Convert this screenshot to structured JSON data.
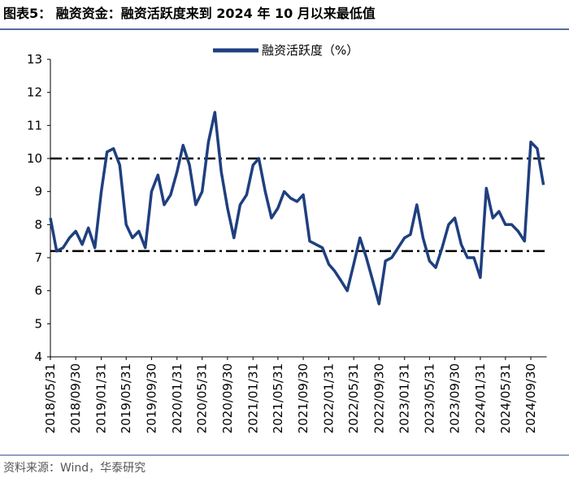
{
  "title": "图表5：  融资资金：融资活跃度来到 2024 年 10 月以来最低值",
  "source": "资料来源：Wind，华泰研究",
  "chart_data": {
    "type": "line",
    "x": [
      "2018/05/31",
      "2018/06/30",
      "2018/07/31",
      "2018/08/31",
      "2018/09/30",
      "2018/10/31",
      "2018/11/30",
      "2018/12/31",
      "2019/01/31",
      "2019/02/28",
      "2019/03/31",
      "2019/04/30",
      "2019/05/31",
      "2019/06/30",
      "2019/07/31",
      "2019/08/31",
      "2019/09/30",
      "2019/10/31",
      "2019/11/30",
      "2019/12/31",
      "2020/01/31",
      "2020/02/29",
      "2020/03/31",
      "2020/04/30",
      "2020/05/31",
      "2020/06/30",
      "2020/07/31",
      "2020/08/31",
      "2020/09/30",
      "2020/10/31",
      "2020/11/30",
      "2020/12/31",
      "2021/01/31",
      "2021/02/28",
      "2021/03/31",
      "2021/04/30",
      "2021/05/31",
      "2021/06/30",
      "2021/07/31",
      "2021/08/31",
      "2021/09/30",
      "2021/10/31",
      "2021/11/30",
      "2021/12/31",
      "2022/01/31",
      "2022/02/28",
      "2022/03/31",
      "2022/04/30",
      "2022/05/31",
      "2022/06/30",
      "2022/07/31",
      "2022/08/31",
      "2022/09/30",
      "2022/10/31",
      "2022/11/30",
      "2022/12/31",
      "2023/01/31",
      "2023/02/28",
      "2023/03/31",
      "2023/04/30",
      "2023/05/31",
      "2023/06/30",
      "2023/07/31",
      "2023/08/31",
      "2023/09/30",
      "2023/10/31",
      "2023/11/30",
      "2023/12/31",
      "2024/01/31",
      "2024/02/29",
      "2024/03/31",
      "2024/04/30",
      "2024/05/31",
      "2024/06/30",
      "2024/07/31",
      "2024/08/31",
      "2024/09/30",
      "2024/10/31",
      "2024/11/30"
    ],
    "series": [
      {
        "name": "融资活跃度（%）",
        "color": "#1f3f7f",
        "values": [
          8.2,
          7.2,
          7.3,
          7.6,
          7.8,
          7.4,
          7.9,
          7.3,
          9.0,
          10.2,
          10.3,
          9.8,
          8.0,
          7.6,
          7.8,
          7.3,
          9.0,
          9.5,
          8.6,
          8.9,
          9.6,
          10.4,
          9.8,
          8.6,
          9.0,
          10.5,
          11.4,
          9.6,
          8.5,
          7.6,
          8.6,
          8.9,
          9.8,
          10.0,
          9.0,
          8.2,
          8.5,
          9.0,
          8.8,
          8.7,
          8.9,
          7.5,
          7.4,
          7.3,
          6.8,
          6.6,
          6.3,
          6.0,
          6.8,
          7.6,
          7.0,
          6.3,
          5.6,
          6.9,
          7.0,
          7.3,
          7.6,
          7.7,
          8.6,
          7.6,
          6.9,
          6.7,
          7.3,
          8.0,
          8.2,
          7.4,
          7.0,
          7.0,
          6.4,
          9.1,
          8.2,
          8.4,
          8.0,
          8.0,
          7.8,
          7.5,
          10.5,
          10.3,
          9.2
        ]
      }
    ],
    "xticks": [
      "2018/05/31",
      "2018/09/30",
      "2019/01/31",
      "2019/05/31",
      "2019/09/30",
      "2020/01/31",
      "2020/05/31",
      "2020/09/30",
      "2021/01/31",
      "2021/05/31",
      "2021/09/30",
      "2022/01/31",
      "2022/05/31",
      "2022/09/30",
      "2023/01/31",
      "2023/05/31",
      "2023/09/30",
      "2024/01/31",
      "2024/05/31",
      "2024/09/30"
    ],
    "ylim": [
      4,
      13
    ],
    "yticks": [
      4,
      5,
      6,
      7,
      8,
      9,
      10,
      11,
      12,
      13
    ],
    "reference_lines": [
      10,
      7.2
    ],
    "legend": "top"
  }
}
